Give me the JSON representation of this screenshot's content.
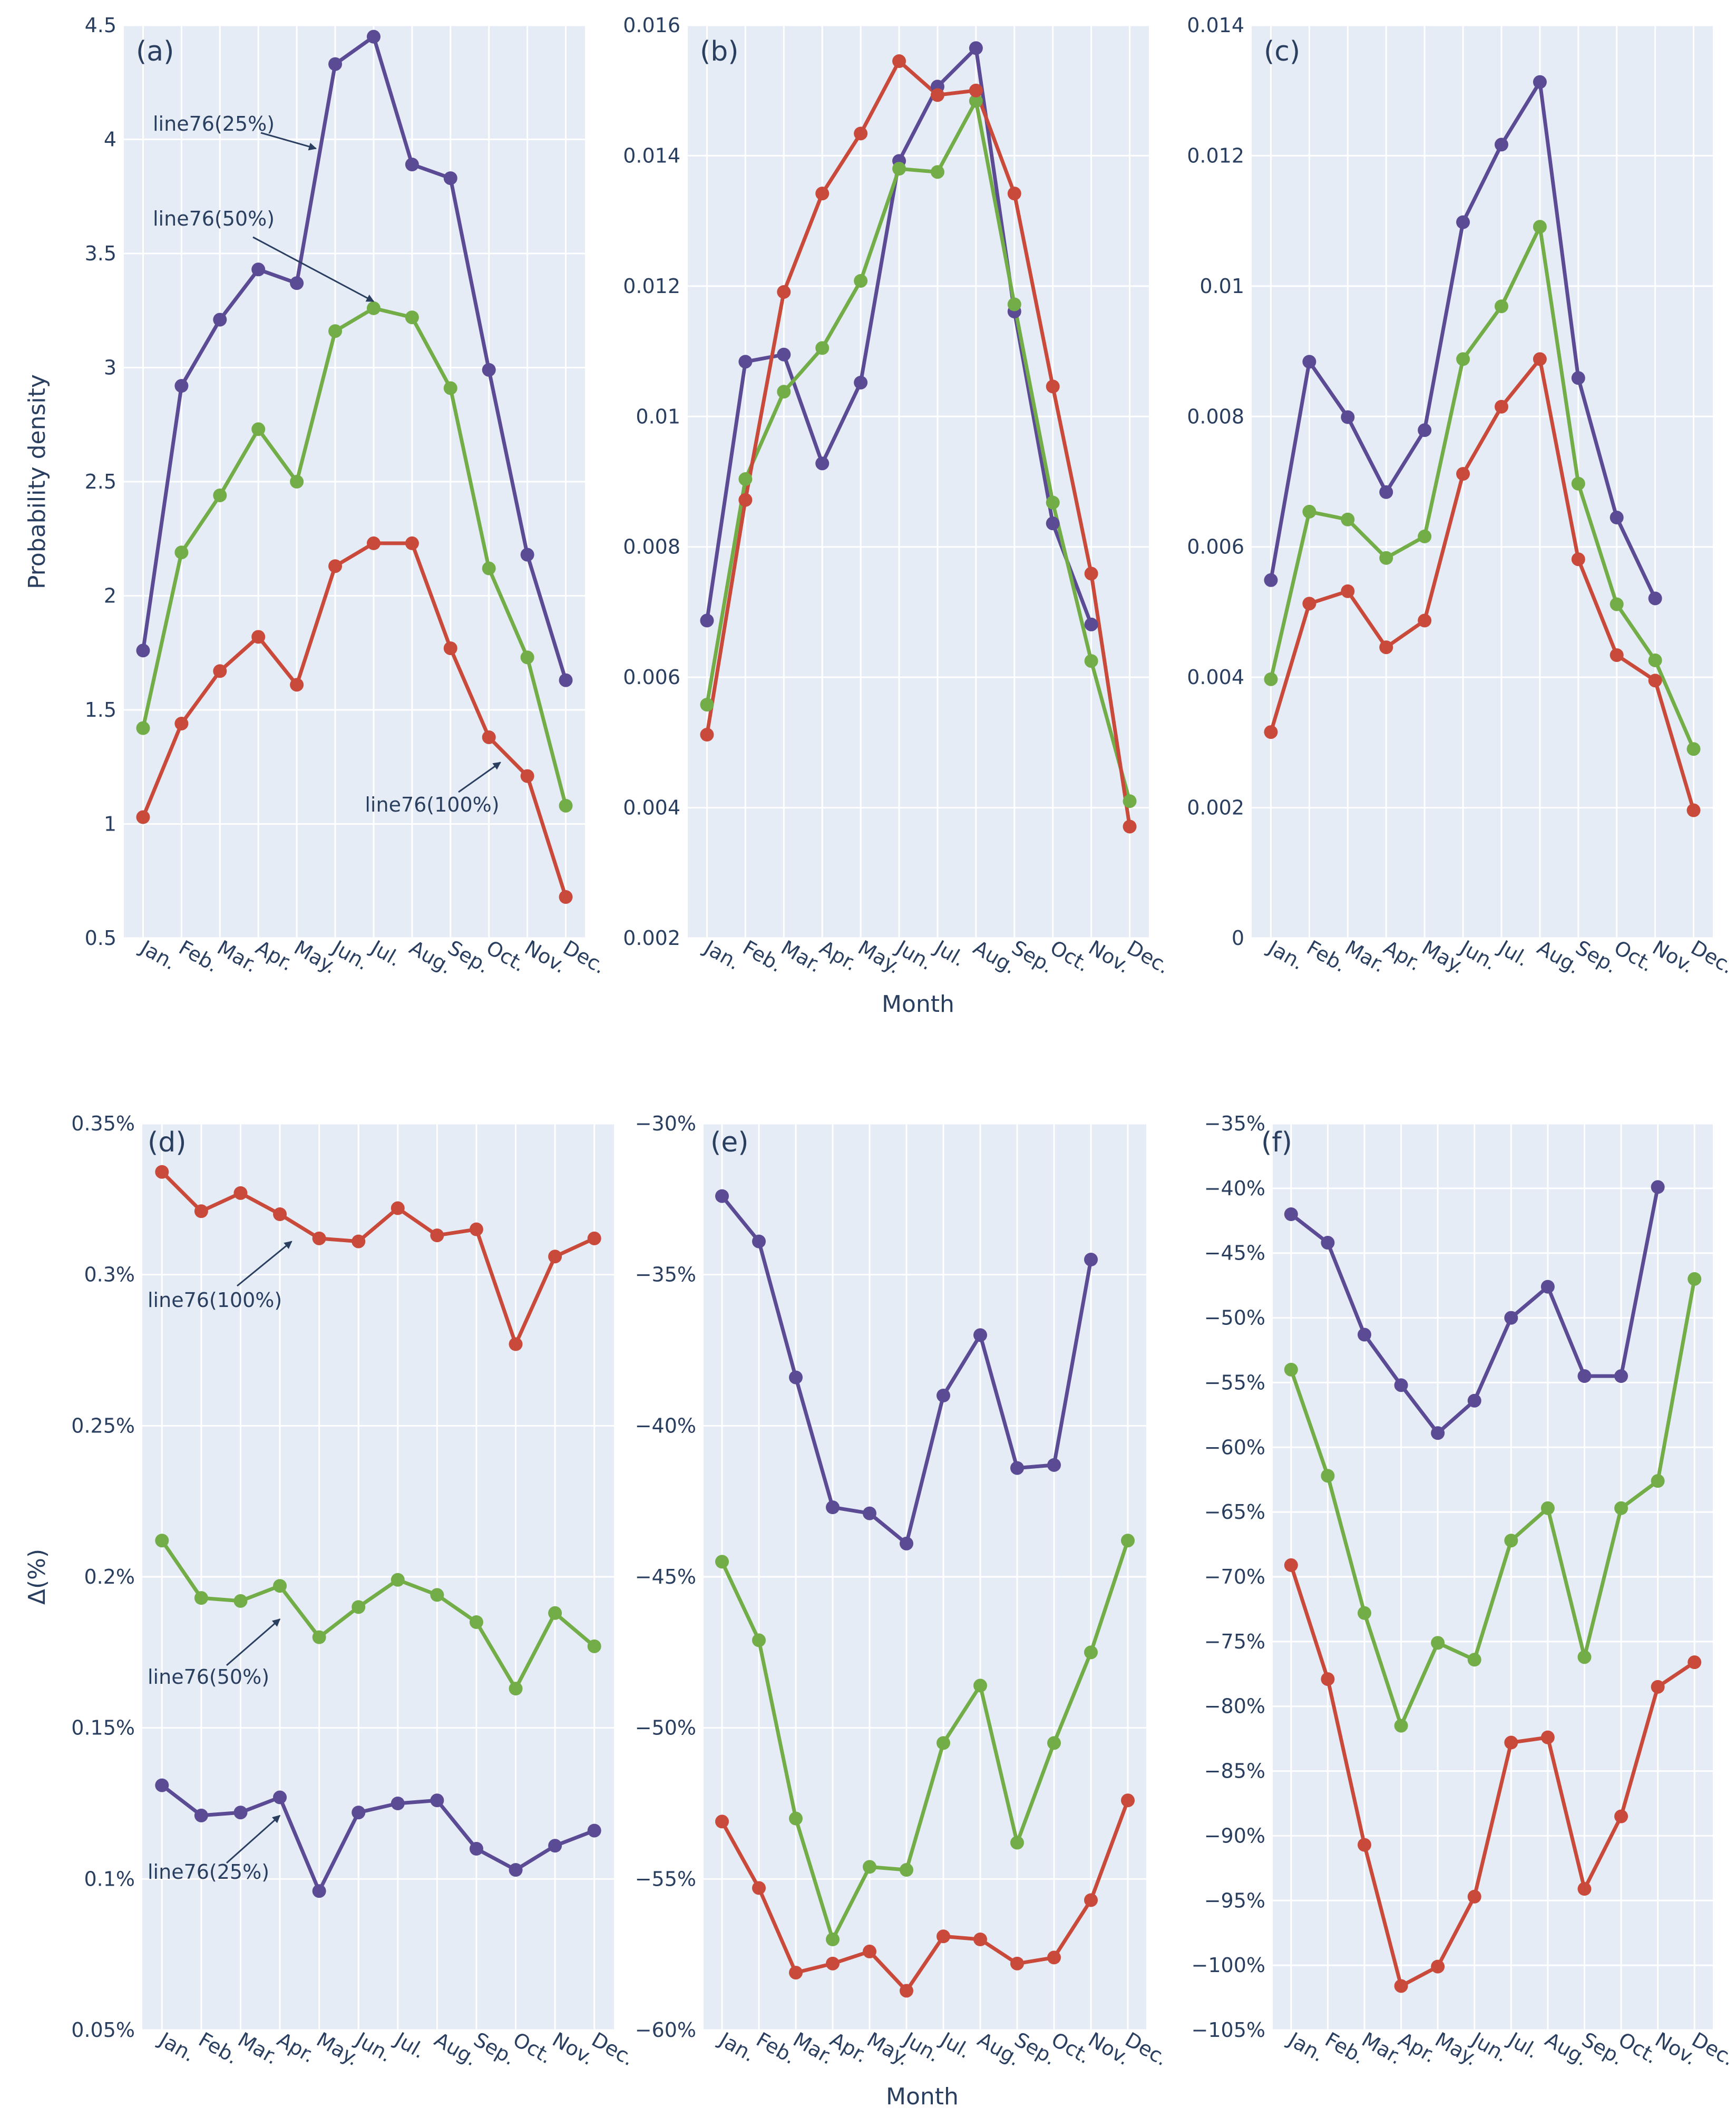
{
  "colors": {
    "line76(25%)": "#5b4a94",
    "line76(50%)": "#72ad48",
    "line76(100%)": "#c94a3a",
    "panel_bg": "#e5ecf6",
    "arrow": "#2a3f5f"
  },
  "shared": {
    "months": [
      "Jan.",
      "Feb.",
      "Mar.",
      "Apr.",
      "May.",
      "Jun.",
      "Jul.",
      "Aug.",
      "Sep.",
      "Oct.",
      "Nov.",
      "Dec."
    ],
    "xlabel": "Month"
  },
  "chart_data": [
    {
      "id": "a",
      "type": "line",
      "label": "(a)",
      "ylabel": "Probability density",
      "xlabel": "",
      "ylim": [
        0.5,
        4.5
      ],
      "yticks": [
        0.5,
        1,
        1.5,
        2,
        2.5,
        3,
        3.5,
        4,
        4.5
      ],
      "ytick_labels": [
        "0.5",
        "1",
        "1.5",
        "2",
        "2.5",
        "3",
        "3.5",
        "4",
        "4.5"
      ],
      "series": [
        {
          "name": "line76(25%)",
          "values": [
            1.76,
            2.92,
            3.21,
            3.43,
            3.37,
            4.33,
            4.45,
            3.89,
            3.83,
            2.99,
            2.18,
            1.63
          ]
        },
        {
          "name": "line76(50%)",
          "values": [
            1.42,
            2.19,
            2.44,
            2.73,
            2.5,
            3.16,
            3.26,
            3.22,
            2.91,
            2.12,
            1.73,
            1.08
          ]
        },
        {
          "name": "line76(100%)",
          "values": [
            1.03,
            1.44,
            1.67,
            1.82,
            1.61,
            2.13,
            2.23,
            2.23,
            1.77,
            1.38,
            1.21,
            0.68
          ]
        }
      ],
      "annotations": [
        {
          "text": "line76(25%)",
          "x_index": 4.5,
          "y": 3.96
        },
        {
          "text": "line76(50%)",
          "x_index": 6.0,
          "y": 3.29
        },
        {
          "text": "line76(100%)",
          "x_index": 9.3,
          "y": 1.27
        }
      ]
    },
    {
      "id": "b",
      "type": "line",
      "label": "(b)",
      "ylabel": "",
      "xlabel": "Month",
      "ylim": [
        0.002,
        0.016
      ],
      "yticks": [
        0.002,
        0.004,
        0.006,
        0.008,
        0.01,
        0.012,
        0.014,
        0.016
      ],
      "ytick_labels": [
        "0.002",
        "0.004",
        "0.006",
        "0.008",
        "0.01",
        "0.012",
        "0.014",
        "0.016"
      ],
      "series": [
        {
          "name": "line76(25%)",
          "values": [
            0.00687,
            0.01084,
            0.01095,
            0.00928,
            0.01052,
            0.01392,
            0.01506,
            0.01565,
            0.01161,
            0.00836,
            0.00681,
            null
          ]
        },
        {
          "name": "line76(50%)",
          "values": [
            0.00558,
            0.00904,
            0.01038,
            0.01105,
            0.01208,
            0.0138,
            0.01375,
            0.01484,
            0.01172,
            0.00868,
            0.00625,
            0.0041
          ]
        },
        {
          "name": "line76(100%)",
          "values": [
            0.00512,
            0.00872,
            0.01191,
            0.01342,
            0.01434,
            0.01545,
            0.01493,
            0.015,
            0.01342,
            0.01046,
            0.00759,
            0.00371
          ]
        }
      ]
    },
    {
      "id": "c",
      "type": "line",
      "label": "(c)",
      "ylabel": "",
      "xlabel": "",
      "ylim": [
        0,
        0.014
      ],
      "yticks": [
        0,
        0.002,
        0.004,
        0.006,
        0.008,
        0.01,
        0.012,
        0.014
      ],
      "ytick_labels": [
        "0",
        "0.002",
        "0.004",
        "0.006",
        "0.008",
        "0.01",
        "0.012",
        "0.014"
      ],
      "series": [
        {
          "name": "line76(25%)",
          "values": [
            0.00549,
            0.00884,
            0.00799,
            0.00684,
            0.00779,
            0.01098,
            0.01217,
            0.01313,
            0.00859,
            0.00645,
            0.00521,
            null
          ]
        },
        {
          "name": "line76(50%)",
          "values": [
            0.00397,
            0.00654,
            0.00642,
            0.00583,
            0.00616,
            0.00888,
            0.00969,
            0.01091,
            0.00697,
            0.00512,
            0.00426,
            0.0029
          ]
        },
        {
          "name": "line76(100%)",
          "values": [
            0.00316,
            0.00513,
            0.00532,
            0.00446,
            0.00487,
            0.00712,
            0.00815,
            0.00888,
            0.00581,
            0.00434,
            0.00395,
            0.00196
          ]
        }
      ]
    },
    {
      "id": "d",
      "type": "line",
      "label": "(d)",
      "ylabel": "Δ(%)",
      "xlabel": "",
      "ylim": [
        0.05,
        0.35
      ],
      "yticks": [
        0.05,
        0.1,
        0.15,
        0.2,
        0.25,
        0.3,
        0.35
      ],
      "ytick_labels": [
        "0.05%",
        "0.1%",
        "0.15%",
        "0.2%",
        "0.25%",
        "0.3%",
        "0.35%"
      ],
      "series": [
        {
          "name": "line76(25%)",
          "values": [
            0.131,
            0.121,
            0.122,
            0.127,
            0.096,
            0.122,
            0.125,
            0.126,
            0.11,
            0.103,
            0.111,
            0.116
          ]
        },
        {
          "name": "line76(50%)",
          "values": [
            0.212,
            0.193,
            0.192,
            0.197,
            0.18,
            0.19,
            0.199,
            0.194,
            0.185,
            0.163,
            0.188,
            0.177
          ]
        },
        {
          "name": "line76(100%)",
          "values": [
            0.334,
            0.321,
            0.327,
            0.32,
            0.312,
            0.311,
            0.322,
            0.313,
            0.315,
            0.277,
            0.306,
            0.312
          ]
        }
      ],
      "annotations": [
        {
          "text": "line76(100%)",
          "x_index": 3.3,
          "y": 0.311
        },
        {
          "text": "line76(50%)",
          "x_index": 3.0,
          "y": 0.186
        },
        {
          "text": "line76(25%)",
          "x_index": 3.0,
          "y": 0.121
        }
      ]
    },
    {
      "id": "e",
      "type": "line",
      "label": "(e)",
      "ylabel": "",
      "xlabel": "Month",
      "ylim": [
        -60,
        -30
      ],
      "yticks": [
        -60,
        -55,
        -50,
        -45,
        -40,
        -35,
        -30
      ],
      "ytick_labels": [
        "−60%",
        "−55%",
        "−50%",
        "−45%",
        "−40%",
        "−35%",
        "−30%"
      ],
      "series": [
        {
          "name": "line76(25%)",
          "values": [
            -32.4,
            -33.9,
            -38.4,
            -42.7,
            -42.9,
            -43.9,
            -39.0,
            -37.0,
            -41.4,
            -41.3,
            -34.5,
            null
          ]
        },
        {
          "name": "line76(50%)",
          "values": [
            -44.5,
            -47.1,
            -53.0,
            -57.0,
            -54.6,
            -54.7,
            -50.5,
            -48.6,
            -53.8,
            -50.5,
            -47.5,
            -43.8
          ]
        },
        {
          "name": "line76(100%)",
          "values": [
            -53.1,
            -55.3,
            -58.1,
            -57.8,
            -57.4,
            -58.7,
            -56.9,
            -57.0,
            -57.8,
            -57.6,
            -55.7,
            -52.4
          ]
        }
      ]
    },
    {
      "id": "f",
      "type": "line",
      "label": "(f)",
      "ylabel": "",
      "xlabel": "",
      "ylim": [
        -105,
        -35
      ],
      "yticks": [
        -105,
        -100,
        -95,
        -90,
        -85,
        -80,
        -75,
        -70,
        -65,
        -60,
        -55,
        -50,
        -45,
        -40,
        -35
      ],
      "ytick_labels": [
        "−105%",
        "−100%",
        "−95%",
        "−90%",
        "−85%",
        "−80%",
        "−75%",
        "−70%",
        "−65%",
        "−60%",
        "−55%",
        "−50%",
        "−45%",
        "−40%",
        "−35%"
      ],
      "series": [
        {
          "name": "line76(25%)",
          "values": [
            -42.0,
            -44.2,
            -51.3,
            -55.2,
            -58.9,
            -56.4,
            -50.0,
            -47.6,
            -54.5,
            -54.5,
            -39.9,
            null
          ]
        },
        {
          "name": "line76(50%)",
          "values": [
            -54.0,
            -62.2,
            -72.8,
            -81.5,
            -75.1,
            -76.4,
            -67.2,
            -64.7,
            -76.2,
            -64.7,
            -62.6,
            -47.0
          ]
        },
        {
          "name": "line76(100%)",
          "values": [
            -69.1,
            -77.9,
            -90.7,
            -101.6,
            -100.1,
            -94.7,
            -82.8,
            -82.4,
            -94.1,
            -88.5,
            -78.5,
            -76.6
          ]
        }
      ]
    }
  ]
}
